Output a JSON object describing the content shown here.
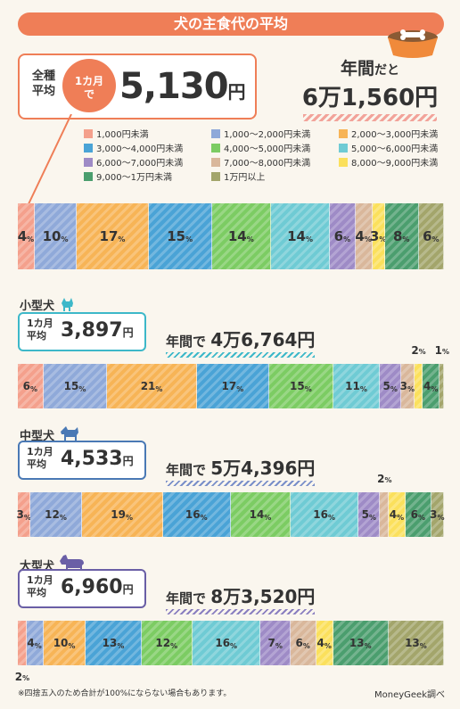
{
  "title": "犬の主食代の平均",
  "all": {
    "label_1": "全種",
    "label_2": "平均",
    "month_1": "1カ月",
    "month_2": "で",
    "value": "5,130",
    "yen": "円",
    "year_prefix": "年間",
    "year_suffix": "だと",
    "year_value": "6万1,560円"
  },
  "colors": [
    "#f4a08c",
    "#8fa9d9",
    "#f7b456",
    "#4aa3d6",
    "#7ccc63",
    "#6fcbd4",
    "#9e8bc6",
    "#d9b79b",
    "#fbe05c",
    "#4b9e6e",
    "#a3a56b"
  ],
  "legend": [
    "1,000円未満",
    "1,000〜2,000円未満",
    "2,000〜3,000円未満",
    "3,000〜4,000円未満",
    "4,000〜5,000円未満",
    "5,000〜6,000円未満",
    "6,000〜7,000円未満",
    "7,000〜8,000円未満",
    "8,000〜9,000円未満",
    "9,000〜1万円未満",
    "1万円以上"
  ],
  "sections": {
    "small": {
      "title": "小型犬",
      "month_1": "1カ月",
      "month_2": "平均",
      "value": "3,897",
      "yen": "円",
      "year_prefix": "年間で",
      "year_value": "4万6,764円"
    },
    "medium": {
      "title": "中型犬",
      "month_1": "1カ月",
      "month_2": "平均",
      "value": "4,533",
      "yen": "円",
      "year_prefix": "年間で",
      "year_value": "5万4,396円"
    },
    "large": {
      "title": "大型犬",
      "month_1": "1カ月",
      "month_2": "平均",
      "value": "6,960",
      "yen": "円",
      "year_prefix": "年間で",
      "year_value": "8万3,520円"
    }
  },
  "percent_sign": "%",
  "footnote": "※四捨五入のため合計が100%にならない場合もあります。",
  "credit": "MoneyGeek調べ",
  "chart_data": [
    {
      "type": "bar",
      "name": "全種",
      "categories": [
        "1,000円未満",
        "1,000〜2,000円未満",
        "2,000〜3,000円未満",
        "3,000〜4,000円未満",
        "4,000〜5,000円未満",
        "5,000〜6,000円未満",
        "6,000〜7,000円未満",
        "7,000〜8,000円未満",
        "8,000〜9,000円未満",
        "9,000〜1万円未満",
        "1万円以上"
      ],
      "values": [
        4,
        10,
        17,
        15,
        14,
        14,
        6,
        4,
        3,
        8,
        6
      ]
    },
    {
      "type": "bar",
      "name": "小型犬",
      "categories": [
        "1,000円未満",
        "1,000〜2,000円未満",
        "2,000〜3,000円未満",
        "3,000〜4,000円未満",
        "4,000〜5,000円未満",
        "5,000〜6,000円未満",
        "6,000〜7,000円未満",
        "7,000〜8,000円未満",
        "8,000〜9,000円未満",
        "9,000〜1万円未満",
        "1万円以上"
      ],
      "values": [
        6,
        15,
        21,
        17,
        15,
        11,
        5,
        3,
        2,
        4,
        1
      ]
    },
    {
      "type": "bar",
      "name": "中型犬",
      "categories": [
        "1,000円未満",
        "1,000〜2,000円未満",
        "2,000〜3,000円未満",
        "3,000〜4,000円未満",
        "4,000〜5,000円未満",
        "5,000〜6,000円未満",
        "6,000〜7,000円未満",
        "7,000〜8,000円未満",
        "8,000〜9,000円未満",
        "9,000〜1万円未満",
        "1万円以上"
      ],
      "values": [
        3,
        12,
        19,
        16,
        14,
        16,
        5,
        2,
        4,
        6,
        3
      ]
    },
    {
      "type": "bar",
      "name": "大型犬",
      "categories": [
        "1,000円未満",
        "1,000〜2,000円未満",
        "2,000〜3,000円未満",
        "3,000〜4,000円未満",
        "4,000〜5,000円未満",
        "5,000〜6,000円未満",
        "6,000〜7,000円未満",
        "7,000〜8,000円未満",
        "8,000〜9,000円未満",
        "9,000〜1万円未満",
        "1万円以上"
      ],
      "values": [
        2,
        4,
        10,
        13,
        12,
        16,
        7,
        6,
        4,
        13,
        13
      ]
    }
  ]
}
